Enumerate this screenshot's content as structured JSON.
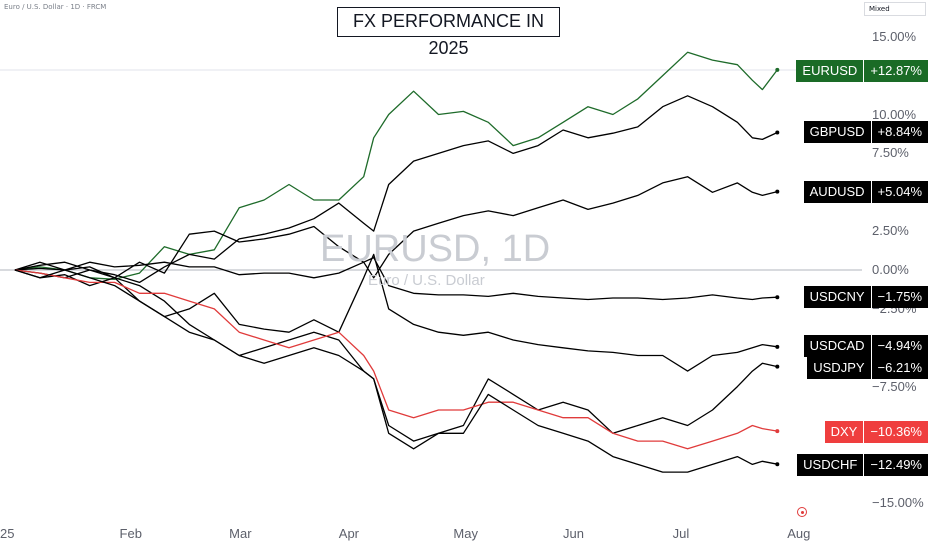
{
  "header": {
    "symbol_line": "Euro / U.S. Dollar · 1D · FRCM",
    "scale_mode": "Mixed"
  },
  "title": "FX PERFORMANCE IN 2025",
  "watermark": {
    "symbol": "EURUSD, 1D",
    "name": "Euro / U.S. Dollar"
  },
  "chart_data": {
    "type": "line",
    "title": "FX PERFORMANCE IN 2025",
    "xlabel": "",
    "ylabel": "",
    "x_axis_labels": [
      "25",
      "Feb",
      "Mar",
      "Apr",
      "May",
      "Jun",
      "Jul",
      "Aug"
    ],
    "y_ticks": [
      "15.00%",
      "10.00%",
      "7.50%",
      "2.50%",
      "0.00%",
      "−2.50%",
      "−7.50%",
      "−15.00%"
    ],
    "y_tick_values": [
      15,
      10,
      7.5,
      2.5,
      0,
      -2.5,
      -7.5,
      -15
    ],
    "ylim": [
      -15,
      15
    ],
    "zero_line": true,
    "grid": false,
    "x_domain": [
      0,
      170
    ],
    "x_month_positions": [
      0,
      23,
      45,
      67,
      90,
      112,
      134,
      157
    ],
    "series": [
      {
        "name": "EURUSD",
        "value_label": "+12.87%",
        "color": "#1e6b2a",
        "tag_color": "#1a6b26",
        "points": [
          [
            0,
            0
          ],
          [
            5,
            0.2
          ],
          [
            10,
            0
          ],
          [
            15,
            -0.5
          ],
          [
            20,
            -0.6
          ],
          [
            25,
            -0.2
          ],
          [
            30,
            1.5
          ],
          [
            35,
            1.0
          ],
          [
            40,
            1.3
          ],
          [
            45,
            4.0
          ],
          [
            50,
            4.5
          ],
          [
            55,
            5.5
          ],
          [
            60,
            4.5
          ],
          [
            65,
            4.5
          ],
          [
            70,
            6.0
          ],
          [
            72,
            8.5
          ],
          [
            75,
            10.0
          ],
          [
            80,
            11.5
          ],
          [
            85,
            10.0
          ],
          [
            90,
            10.2
          ],
          [
            95,
            9.5
          ],
          [
            100,
            8.0
          ],
          [
            105,
            8.5
          ],
          [
            110,
            9.5
          ],
          [
            115,
            10.5
          ],
          [
            120,
            10.0
          ],
          [
            125,
            11.0
          ],
          [
            130,
            12.5
          ],
          [
            135,
            14.0
          ],
          [
            140,
            13.5
          ],
          [
            145,
            13.2
          ],
          [
            148,
            12.2
          ],
          [
            150,
            11.6
          ],
          [
            153,
            12.87
          ]
        ]
      },
      {
        "name": "GBPUSD",
        "value_label": "+8.84%",
        "color": "#000000",
        "tag_color": "#000000",
        "points": [
          [
            0,
            0
          ],
          [
            5,
            0.3
          ],
          [
            10,
            0.5
          ],
          [
            15,
            0
          ],
          [
            20,
            -0.3
          ],
          [
            25,
            -0.8
          ],
          [
            30,
            0.2
          ],
          [
            35,
            1.0
          ],
          [
            40,
            0.7
          ],
          [
            45,
            2.0
          ],
          [
            50,
            2.3
          ],
          [
            55,
            2.7
          ],
          [
            60,
            3.3
          ],
          [
            65,
            4.3
          ],
          [
            70,
            3.0
          ],
          [
            72,
            2.5
          ],
          [
            75,
            5.5
          ],
          [
            80,
            7.0
          ],
          [
            85,
            7.5
          ],
          [
            90,
            8.0
          ],
          [
            95,
            8.3
          ],
          [
            100,
            7.5
          ],
          [
            105,
            8.0
          ],
          [
            110,
            9.0
          ],
          [
            115,
            8.5
          ],
          [
            120,
            8.8
          ],
          [
            125,
            9.2
          ],
          [
            130,
            10.5
          ],
          [
            135,
            11.2
          ],
          [
            140,
            10.5
          ],
          [
            145,
            9.5
          ],
          [
            148,
            8.5
          ],
          [
            150,
            8.4
          ],
          [
            153,
            8.84
          ]
        ]
      },
      {
        "name": "AUDUSD",
        "value_label": "+5.04%",
        "color": "#000000",
        "tag_color": "#000000",
        "points": [
          [
            0,
            0
          ],
          [
            5,
            -0.5
          ],
          [
            10,
            -0.3
          ],
          [
            15,
            -1.0
          ],
          [
            20,
            -0.5
          ],
          [
            25,
            0.5
          ],
          [
            30,
            -0.2
          ],
          [
            35,
            2.3
          ],
          [
            40,
            2.5
          ],
          [
            45,
            1.8
          ],
          [
            50,
            2.0
          ],
          [
            55,
            2.3
          ],
          [
            60,
            2.8
          ],
          [
            65,
            1.5
          ],
          [
            70,
            0.5
          ],
          [
            72,
            -0.5
          ],
          [
            75,
            1.0
          ],
          [
            80,
            2.5
          ],
          [
            85,
            3.0
          ],
          [
            90,
            3.5
          ],
          [
            95,
            3.8
          ],
          [
            100,
            3.5
          ],
          [
            105,
            4.0
          ],
          [
            110,
            4.5
          ],
          [
            115,
            3.9
          ],
          [
            120,
            4.3
          ],
          [
            125,
            4.8
          ],
          [
            130,
            5.6
          ],
          [
            135,
            6.0
          ],
          [
            140,
            5.0
          ],
          [
            145,
            5.6
          ],
          [
            148,
            5.0
          ],
          [
            150,
            4.8
          ],
          [
            153,
            5.04
          ]
        ]
      },
      {
        "name": "USDCNY",
        "value_label": "−1.75%",
        "color": "#000000",
        "tag_color": "#000000",
        "points": [
          [
            0,
            0
          ],
          [
            5,
            0.1
          ],
          [
            10,
            0
          ],
          [
            15,
            0.5
          ],
          [
            20,
            0.2
          ],
          [
            25,
            0.3
          ],
          [
            30,
            0.5
          ],
          [
            35,
            0.2
          ],
          [
            40,
            0.2
          ],
          [
            45,
            -0.3
          ],
          [
            50,
            -0.2
          ],
          [
            55,
            -0.2
          ],
          [
            60,
            -0.5
          ],
          [
            65,
            -0.2
          ],
          [
            70,
            0.5
          ],
          [
            72,
            0.8
          ],
          [
            75,
            -1.0
          ],
          [
            80,
            -1.5
          ],
          [
            85,
            -1.6
          ],
          [
            90,
            -1.6
          ],
          [
            95,
            -1.7
          ],
          [
            100,
            -1.5
          ],
          [
            105,
            -1.7
          ],
          [
            110,
            -1.8
          ],
          [
            115,
            -1.9
          ],
          [
            120,
            -1.8
          ],
          [
            125,
            -1.8
          ],
          [
            130,
            -1.9
          ],
          [
            135,
            -1.8
          ],
          [
            140,
            -1.6
          ],
          [
            145,
            -1.8
          ],
          [
            148,
            -1.9
          ],
          [
            150,
            -1.8
          ],
          [
            153,
            -1.75
          ]
        ]
      },
      {
        "name": "USDCAD",
        "value_label": "−4.94%",
        "color": "#000000",
        "tag_color": "#000000",
        "points": [
          [
            0,
            0
          ],
          [
            5,
            -0.2
          ],
          [
            10,
            -0.5
          ],
          [
            15,
            0
          ],
          [
            20,
            -0.5
          ],
          [
            25,
            -2.0
          ],
          [
            30,
            -3.0
          ],
          [
            35,
            -2.5
          ],
          [
            40,
            -1.5
          ],
          [
            45,
            -3.5
          ],
          [
            50,
            -3.8
          ],
          [
            55,
            -4.0
          ],
          [
            60,
            -3.2
          ],
          [
            65,
            -4.0
          ],
          [
            70,
            -0.5
          ],
          [
            72,
            1.0
          ],
          [
            75,
            -2.5
          ],
          [
            80,
            -3.5
          ],
          [
            85,
            -4.0
          ],
          [
            90,
            -4.2
          ],
          [
            95,
            -4.0
          ],
          [
            100,
            -4.5
          ],
          [
            105,
            -4.8
          ],
          [
            110,
            -5.0
          ],
          [
            115,
            -5.2
          ],
          [
            120,
            -5.3
          ],
          [
            125,
            -5.5
          ],
          [
            130,
            -5.5
          ],
          [
            135,
            -6.5
          ],
          [
            140,
            -5.5
          ],
          [
            145,
            -5.3
          ],
          [
            148,
            -5.0
          ],
          [
            150,
            -4.8
          ],
          [
            153,
            -4.94
          ]
        ]
      },
      {
        "name": "USDJPY",
        "value_label": "−6.21%",
        "color": "#000000",
        "tag_color": "#000000",
        "points": [
          [
            0,
            0
          ],
          [
            5,
            0.5
          ],
          [
            10,
            0
          ],
          [
            15,
            0.2
          ],
          [
            20,
            -0.5
          ],
          [
            25,
            -1.0
          ],
          [
            30,
            -2.0
          ],
          [
            35,
            -3.5
          ],
          [
            40,
            -4.5
          ],
          [
            45,
            -5.5
          ],
          [
            50,
            -5.0
          ],
          [
            55,
            -4.5
          ],
          [
            60,
            -4.0
          ],
          [
            65,
            -4.5
          ],
          [
            70,
            -6.5
          ],
          [
            72,
            -7.0
          ],
          [
            75,
            -10.0
          ],
          [
            80,
            -11.0
          ],
          [
            85,
            -10.5
          ],
          [
            90,
            -10.0
          ],
          [
            95,
            -7.0
          ],
          [
            100,
            -8.0
          ],
          [
            105,
            -9.0
          ],
          [
            110,
            -8.5
          ],
          [
            115,
            -9.0
          ],
          [
            120,
            -10.5
          ],
          [
            125,
            -10.0
          ],
          [
            130,
            -9.5
          ],
          [
            135,
            -10.0
          ],
          [
            140,
            -9.0
          ],
          [
            145,
            -7.5
          ],
          [
            148,
            -6.5
          ],
          [
            150,
            -6.0
          ],
          [
            153,
            -6.21
          ]
        ]
      },
      {
        "name": "DXY",
        "value_label": "−10.36%",
        "color": "#e03b3b",
        "tag_color": "#ef3e3e",
        "points": [
          [
            0,
            0
          ],
          [
            5,
            -0.2
          ],
          [
            10,
            -0.5
          ],
          [
            15,
            -0.8
          ],
          [
            20,
            -0.8
          ],
          [
            25,
            -1.5
          ],
          [
            30,
            -1.5
          ],
          [
            35,
            -2.0
          ],
          [
            40,
            -2.5
          ],
          [
            45,
            -4.0
          ],
          [
            50,
            -4.5
          ],
          [
            55,
            -5.0
          ],
          [
            60,
            -4.5
          ],
          [
            65,
            -4.0
          ],
          [
            70,
            -5.5
          ],
          [
            72,
            -6.5
          ],
          [
            75,
            -9.0
          ],
          [
            80,
            -9.5
          ],
          [
            85,
            -9.0
          ],
          [
            90,
            -9.0
          ],
          [
            95,
            -8.5
          ],
          [
            100,
            -8.5
          ],
          [
            105,
            -9.0
          ],
          [
            110,
            -9.5
          ],
          [
            115,
            -9.5
          ],
          [
            120,
            -10.5
          ],
          [
            125,
            -11.0
          ],
          [
            130,
            -11.0
          ],
          [
            135,
            -11.5
          ],
          [
            140,
            -11.0
          ],
          [
            145,
            -10.5
          ],
          [
            148,
            -10.0
          ],
          [
            150,
            -10.2
          ],
          [
            153,
            -10.36
          ]
        ]
      },
      {
        "name": "USDCHF",
        "value_label": "−12.49%",
        "color": "#000000",
        "tag_color": "#000000",
        "points": [
          [
            0,
            0
          ],
          [
            5,
            -0.5
          ],
          [
            10,
            0
          ],
          [
            15,
            -0.5
          ],
          [
            20,
            -1.0
          ],
          [
            25,
            -2.0
          ],
          [
            30,
            -3.0
          ],
          [
            35,
            -4.0
          ],
          [
            40,
            -4.5
          ],
          [
            45,
            -5.5
          ],
          [
            50,
            -6.0
          ],
          [
            55,
            -5.5
          ],
          [
            60,
            -5.0
          ],
          [
            65,
            -5.5
          ],
          [
            70,
            -6.5
          ],
          [
            72,
            -7.0
          ],
          [
            75,
            -10.5
          ],
          [
            80,
            -11.5
          ],
          [
            85,
            -10.5
          ],
          [
            90,
            -10.5
          ],
          [
            95,
            -8.0
          ],
          [
            100,
            -9.0
          ],
          [
            105,
            -10.0
          ],
          [
            110,
            -10.5
          ],
          [
            115,
            -11.0
          ],
          [
            120,
            -12.0
          ],
          [
            125,
            -12.5
          ],
          [
            130,
            -13.0
          ],
          [
            135,
            -13.0
          ],
          [
            140,
            -12.5
          ],
          [
            145,
            -12.0
          ],
          [
            148,
            -12.5
          ],
          [
            150,
            -12.3
          ],
          [
            153,
            -12.49
          ]
        ]
      }
    ]
  }
}
